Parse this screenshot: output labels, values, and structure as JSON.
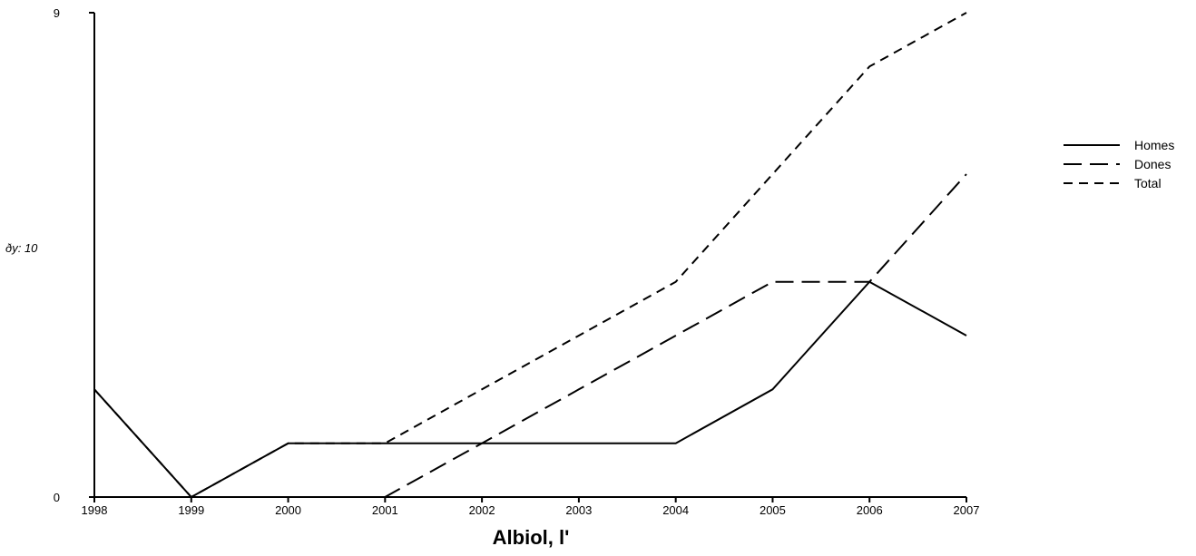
{
  "chart_data": {
    "type": "line",
    "xlabel": "Albiol, l'",
    "y_note": "ðy: 10",
    "x": [
      "1998",
      "1999",
      "2000",
      "2001",
      "2002",
      "2003",
      "2004",
      "2005",
      "2006",
      "2007"
    ],
    "ylim": [
      0,
      9
    ],
    "y_ticks": [
      "0",
      "9"
    ],
    "legend_position": "right",
    "grid": false,
    "series": [
      {
        "name": "Homes",
        "style": "solid",
        "values": [
          2,
          0,
          1,
          1,
          1,
          1,
          1,
          2,
          4,
          3
        ]
      },
      {
        "name": "Dones",
        "style": "long-dash",
        "values": [
          0,
          0,
          0,
          0,
          1,
          2,
          3,
          4,
          4,
          6
        ]
      },
      {
        "name": "Total",
        "style": "short-dash",
        "values": [
          2,
          0,
          1,
          1,
          2,
          3,
          4,
          6,
          8,
          9
        ]
      }
    ]
  }
}
